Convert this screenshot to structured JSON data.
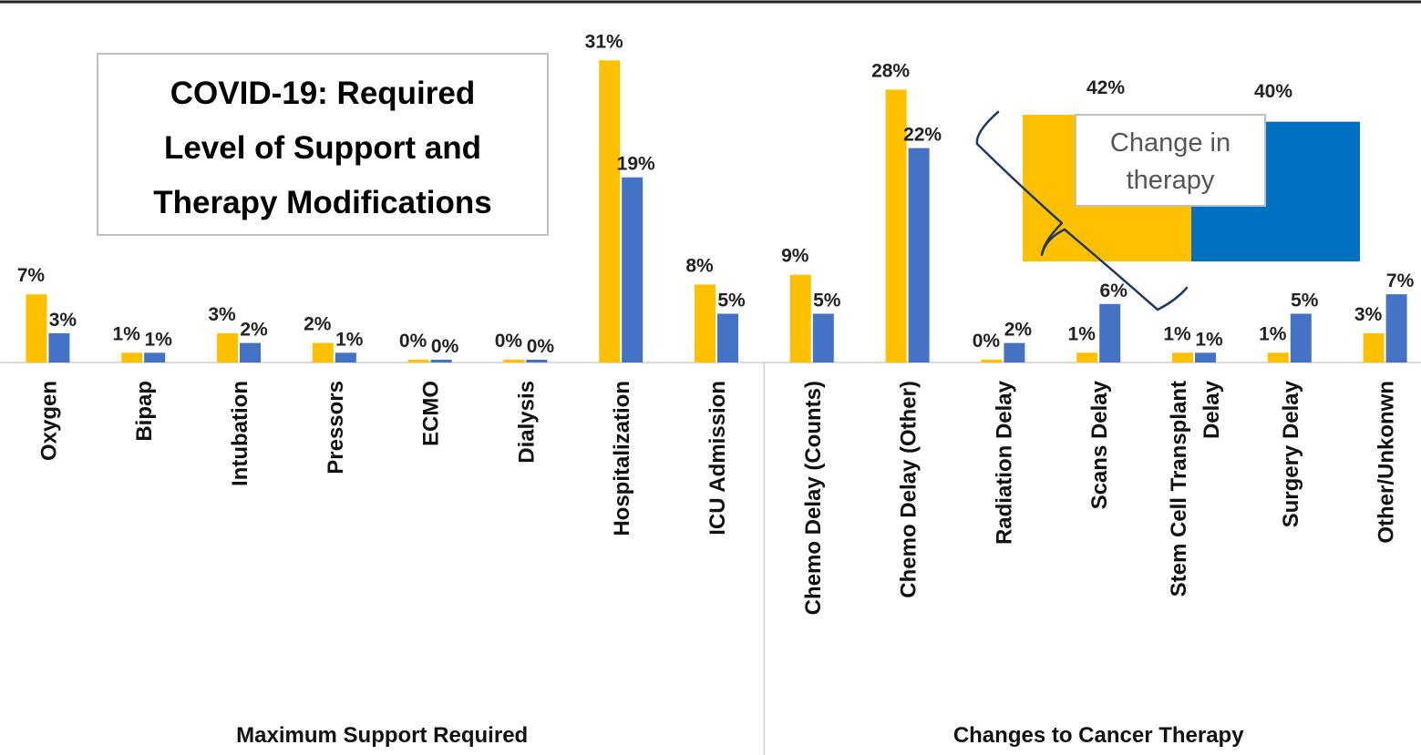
{
  "chart_data": {
    "type": "bar",
    "title_lines": [
      "COVID-19: Required",
      "Level of Support and",
      "Therapy Modifications"
    ],
    "ylim": [
      0,
      33
    ],
    "grid": false,
    "legend": "none",
    "colors": {
      "series_a": "#FFC000",
      "series_b": "#4472C4",
      "inset_a": "#FFC000",
      "inset_b": "#0070C0",
      "brace": "#1F3864"
    },
    "categories": [
      [
        "Oxygen"
      ],
      [
        "Bipap"
      ],
      [
        "Intubation"
      ],
      [
        "Pressors"
      ],
      [
        "ECMO"
      ],
      [
        "Dialysis"
      ],
      [
        "Hospitalization"
      ],
      [
        "ICU Admission"
      ],
      [
        "Chemo Delay (Counts)"
      ],
      [
        "Chemo Delay (Other)"
      ],
      [
        "Radiation Delay"
      ],
      [
        "Scans Delay"
      ],
      [
        "Stem Cell Transplant",
        "Delay"
      ],
      [
        "Surgery Delay"
      ],
      [
        "Other/Unkonwn"
      ]
    ],
    "groups": [
      {
        "label": "Maximum Support Required",
        "from": 0,
        "to": 7
      },
      {
        "label": "Changes to Cancer Therapy",
        "from": 8,
        "to": 14
      }
    ],
    "series": [
      {
        "values": [
          7,
          1,
          3,
          2,
          0,
          0,
          31,
          8,
          9,
          28,
          0,
          1,
          1,
          1,
          3
        ],
        "labels": [
          "7%",
          "1%",
          "3%",
          "2%",
          "0%",
          "0%",
          "31%",
          "8%",
          "9%",
          "28%",
          "0%",
          "1%",
          "1%",
          "1%",
          "3%"
        ]
      },
      {
        "values": [
          3,
          1,
          2,
          1,
          0,
          0,
          19,
          5,
          5,
          22,
          2,
          6,
          1,
          5,
          7
        ],
        "labels": [
          "3%",
          "1%",
          "2%",
          "1%",
          "0%",
          "0%",
          "19%",
          "5%",
          "5%",
          "22%",
          "2%",
          "6%",
          "1%",
          "5%",
          "7%"
        ]
      }
    ],
    "inset": {
      "caption_lines": [
        "Change in",
        "therapy"
      ],
      "values": [
        42,
        40
      ],
      "labels": [
        "42%",
        "40%"
      ]
    }
  }
}
